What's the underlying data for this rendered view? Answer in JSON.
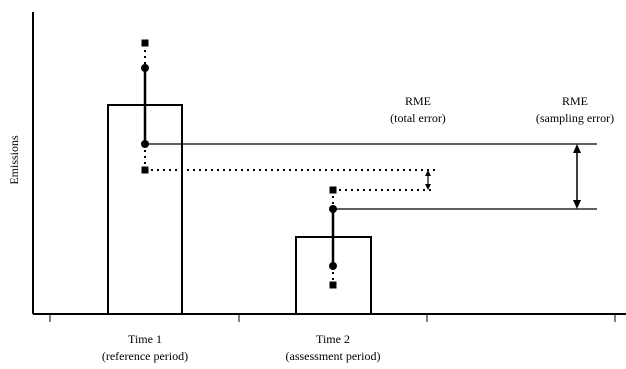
{
  "diagram": {
    "y_axis_label": "Emissions",
    "time_labels": [
      {
        "title": "Time 1",
        "subtitle": "(reference period)"
      },
      {
        "title": "Time 2",
        "subtitle": "(assessment period)"
      }
    ],
    "rme_labels": [
      {
        "title": "RME",
        "subtitle": "(total error)"
      },
      {
        "title": "RME",
        "subtitle": "(sampling error)"
      }
    ],
    "colors": {
      "ink": "#000000",
      "background": "#ffffff"
    }
  }
}
